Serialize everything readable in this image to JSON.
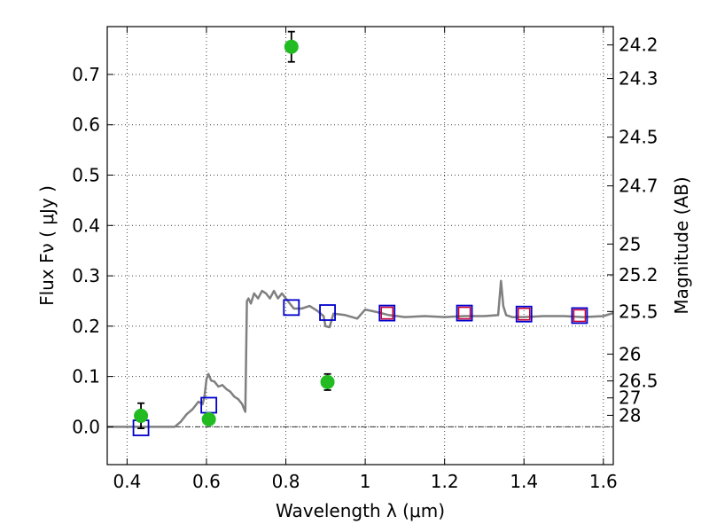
{
  "chart_data": {
    "type": "scatter",
    "xlabel": "Wavelength  λ (μm)",
    "ylabel": "Flux  Fν  ( μJy )",
    "y2label": "Magnitude (AB)",
    "xlim": [
      0.35,
      1.625
    ],
    "ylim": [
      -0.075,
      0.795
    ],
    "x_ticks": [
      0.4,
      0.6,
      0.8,
      1.0,
      1.2,
      1.4,
      1.6
    ],
    "x_tick_labels": [
      "0.4",
      "0.6",
      "0.8",
      "1",
      "1.2",
      "1.4",
      "1.6"
    ],
    "y_ticks": [
      0.0,
      0.1,
      0.2,
      0.3,
      0.4,
      0.5,
      0.6,
      0.7
    ],
    "y_tick_labels": [
      "0.0",
      "0.1",
      "0.2",
      "0.3",
      "0.4",
      "0.5",
      "0.6",
      "0.7"
    ],
    "mag_ticks": [
      24.2,
      24.3,
      24.5,
      24.7,
      25,
      25.2,
      25.5,
      26,
      26.5,
      27,
      28
    ],
    "mag_tick_labels": [
      "24.2",
      "24.3",
      "24.5",
      "24.7",
      "25",
      "25.2",
      "25.5",
      "26",
      "26.5",
      "27",
      "28"
    ],
    "grid": true,
    "zero_line": true,
    "colors": {
      "model": "#808080",
      "observed": "#22bb22",
      "model_photometry": "#0000cc",
      "secondary_model": "#cc0033",
      "grid": "#444444"
    },
    "series": [
      {
        "name": "observed photometry",
        "style": "circle-errorbar",
        "x": [
          0.435,
          0.606,
          0.814,
          0.905
        ],
        "y": [
          0.022,
          0.015,
          0.755,
          0.089
        ],
        "yerr": [
          0.025,
          0.005,
          0.03,
          0.016
        ]
      },
      {
        "name": "model photometry (blue squares)",
        "style": "open-square",
        "x": [
          0.435,
          0.606,
          0.814,
          0.905,
          1.055,
          1.25,
          1.4,
          1.54
        ],
        "y": [
          -0.002,
          0.043,
          0.237,
          0.227,
          0.226,
          0.226,
          0.224,
          0.221
        ]
      },
      {
        "name": "model photometry (red squares)",
        "style": "open-square",
        "x": [
          1.055,
          1.25,
          1.4,
          1.54
        ],
        "y": [
          0.226,
          0.226,
          0.224,
          0.221
        ]
      },
      {
        "name": "model spectrum",
        "style": "line",
        "x": [
          0.35,
          0.52,
          0.535,
          0.55,
          0.565,
          0.58,
          0.59,
          0.595,
          0.6,
          0.605,
          0.612,
          0.62,
          0.63,
          0.64,
          0.65,
          0.66,
          0.67,
          0.68,
          0.69,
          0.695,
          0.698,
          0.702,
          0.706,
          0.712,
          0.72,
          0.73,
          0.74,
          0.75,
          0.76,
          0.77,
          0.78,
          0.79,
          0.8,
          0.82,
          0.84,
          0.86,
          0.88,
          0.895,
          0.9,
          0.91,
          0.92,
          0.95,
          0.98,
          1.0,
          1.03,
          1.06,
          1.1,
          1.15,
          1.2,
          1.25,
          1.3,
          1.335,
          1.342,
          1.348,
          1.355,
          1.37,
          1.4,
          1.45,
          1.5,
          1.55,
          1.6,
          1.625
        ],
        "y": [
          0.0,
          0.0,
          0.01,
          0.025,
          0.035,
          0.05,
          0.045,
          0.06,
          0.095,
          0.105,
          0.092,
          0.09,
          0.08,
          0.083,
          0.075,
          0.07,
          0.06,
          0.055,
          0.045,
          0.035,
          0.03,
          0.25,
          0.255,
          0.245,
          0.265,
          0.255,
          0.27,
          0.265,
          0.255,
          0.27,
          0.255,
          0.265,
          0.255,
          0.235,
          0.235,
          0.24,
          0.23,
          0.22,
          0.2,
          0.198,
          0.225,
          0.222,
          0.215,
          0.233,
          0.228,
          0.222,
          0.218,
          0.22,
          0.218,
          0.22,
          0.22,
          0.222,
          0.29,
          0.24,
          0.222,
          0.218,
          0.218,
          0.22,
          0.22,
          0.218,
          0.22,
          0.226
        ]
      }
    ]
  }
}
